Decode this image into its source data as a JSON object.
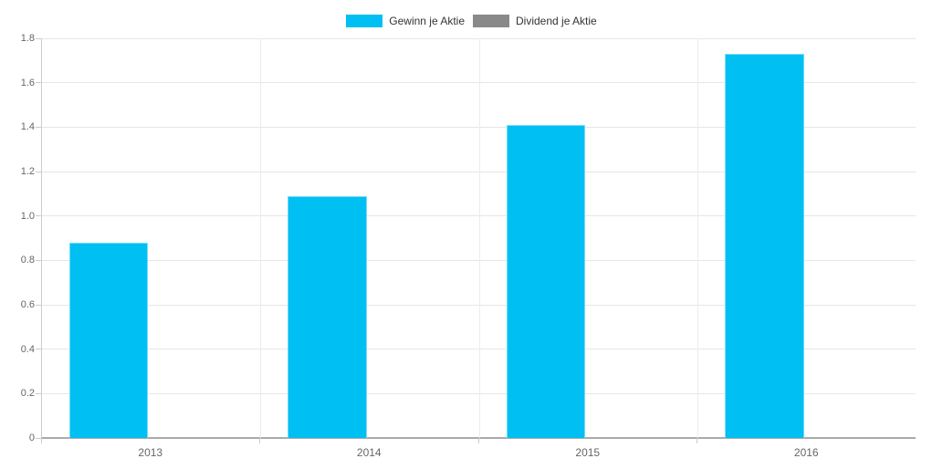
{
  "chart_data": {
    "type": "bar",
    "title": "",
    "xlabel": "",
    "ylabel": "",
    "categories": [
      "2013",
      "2014",
      "2015",
      "2016"
    ],
    "series": [
      {
        "name": "Gewinn je Aktie",
        "color": "#00bff3",
        "values": [
          0.88,
          1.09,
          1.41,
          1.73
        ]
      },
      {
        "name": "Dividend je Aktie",
        "color": "#898989",
        "values": [
          0,
          0,
          0,
          0
        ]
      }
    ],
    "ylim": [
      0,
      1.8
    ],
    "ytick_step": 0.2,
    "ytick_labels": [
      "0",
      "0.2",
      "0.4",
      "0.6",
      "0.8",
      "1.0",
      "1.2",
      "1.4",
      "1.6",
      "1.8"
    ],
    "grid": true,
    "legend_position": "top"
  },
  "legend": {
    "items": [
      {
        "label": "Gewinn je Aktie",
        "color": "#00bff3"
      },
      {
        "label": "Dividend je Aktie",
        "color": "#898989"
      }
    ]
  },
  "colors": {
    "bar_cyan": "#00bff3",
    "bar_gray": "#898989",
    "gridline": "#e6e6e6",
    "axis_line": "#cccccc",
    "baseline": "#aaaaaa",
    "tick_label": "#666666",
    "legend_text": "#333333"
  }
}
